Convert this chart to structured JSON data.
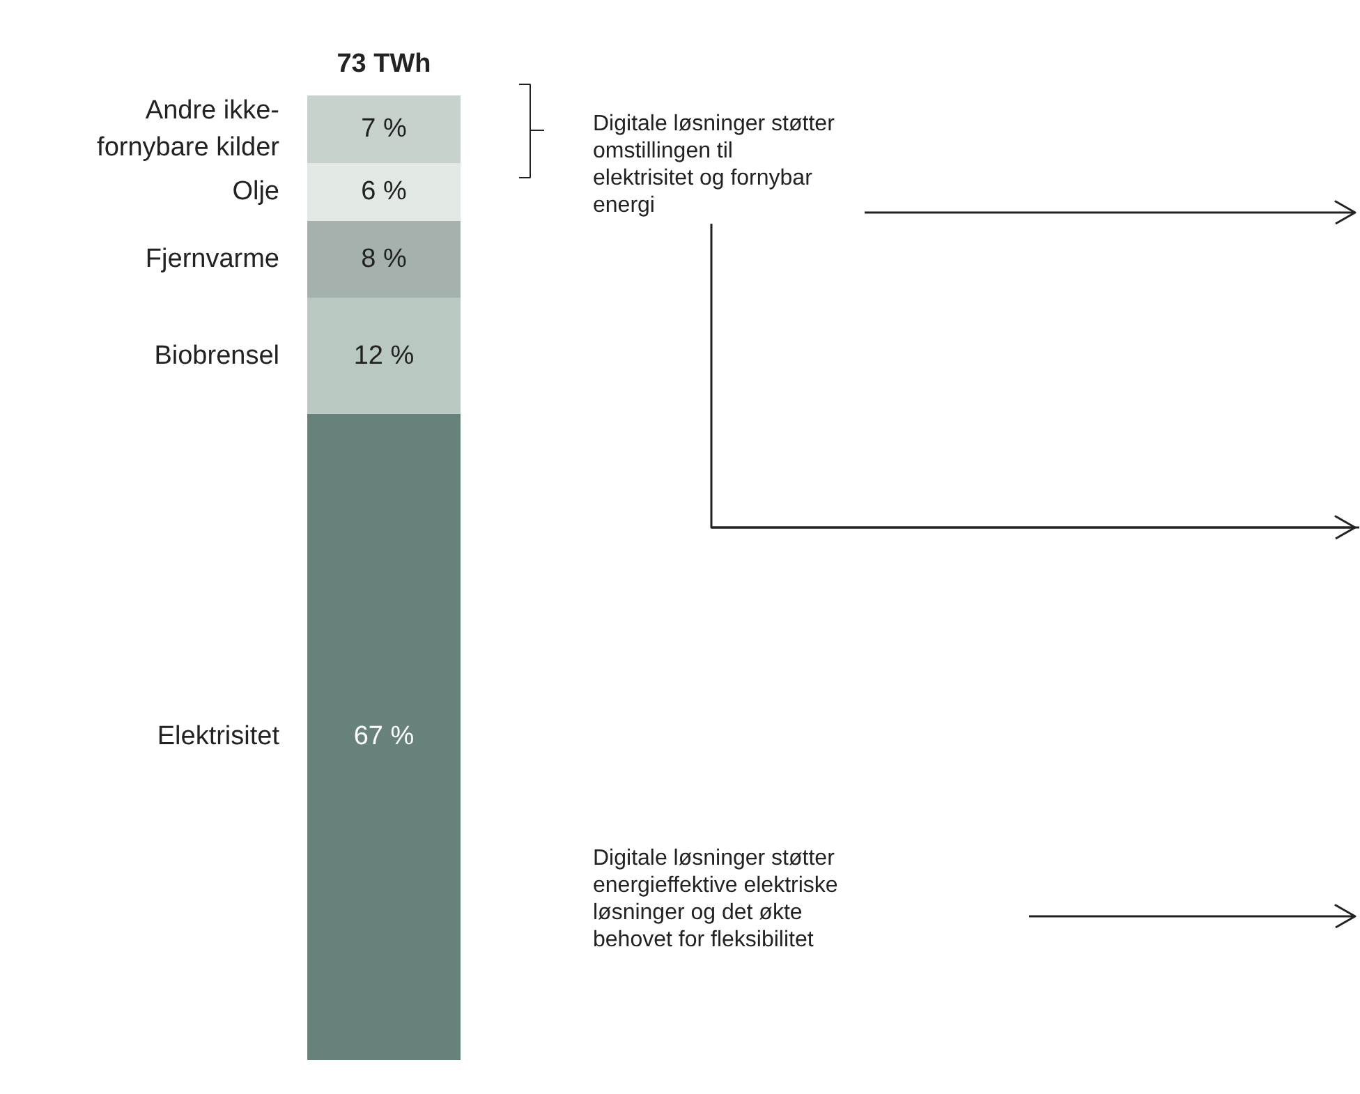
{
  "chart_data": {
    "type": "bar",
    "stacked": true,
    "title": "73 TWh",
    "categories": [
      null
    ],
    "series": [
      {
        "name": "Elektrisitet",
        "color": "#66827b",
        "values": [
          67
        ],
        "value_labels": [
          "67 %"
        ]
      },
      {
        "name": "Biobrensel",
        "color": "#b9c8c0",
        "values": [
          12
        ],
        "value_labels": [
          "12 %"
        ]
      },
      {
        "name": "Fjernvarme",
        "color": "#a4b1ac",
        "values": [
          8
        ],
        "value_labels": [
          "8 %"
        ]
      },
      {
        "name": "Olje",
        "color": "#e2e8e4",
        "values": [
          6
        ],
        "value_labels": [
          "6 %"
        ]
      },
      {
        "name": "Andre ikke-fornybare kilder",
        "color": "#c8d2cd",
        "values": [
          7
        ],
        "value_labels": [
          "7 %"
        ]
      }
    ],
    "annotations": [
      "Digitale løsninger støtter omstillingen til elektrisitet og fornybar energi",
      "Digitale løsninger støtter energieffektive elektriske løsninger og det økte behovet for fleksibilitet"
    ],
    "grid": false
  }
}
